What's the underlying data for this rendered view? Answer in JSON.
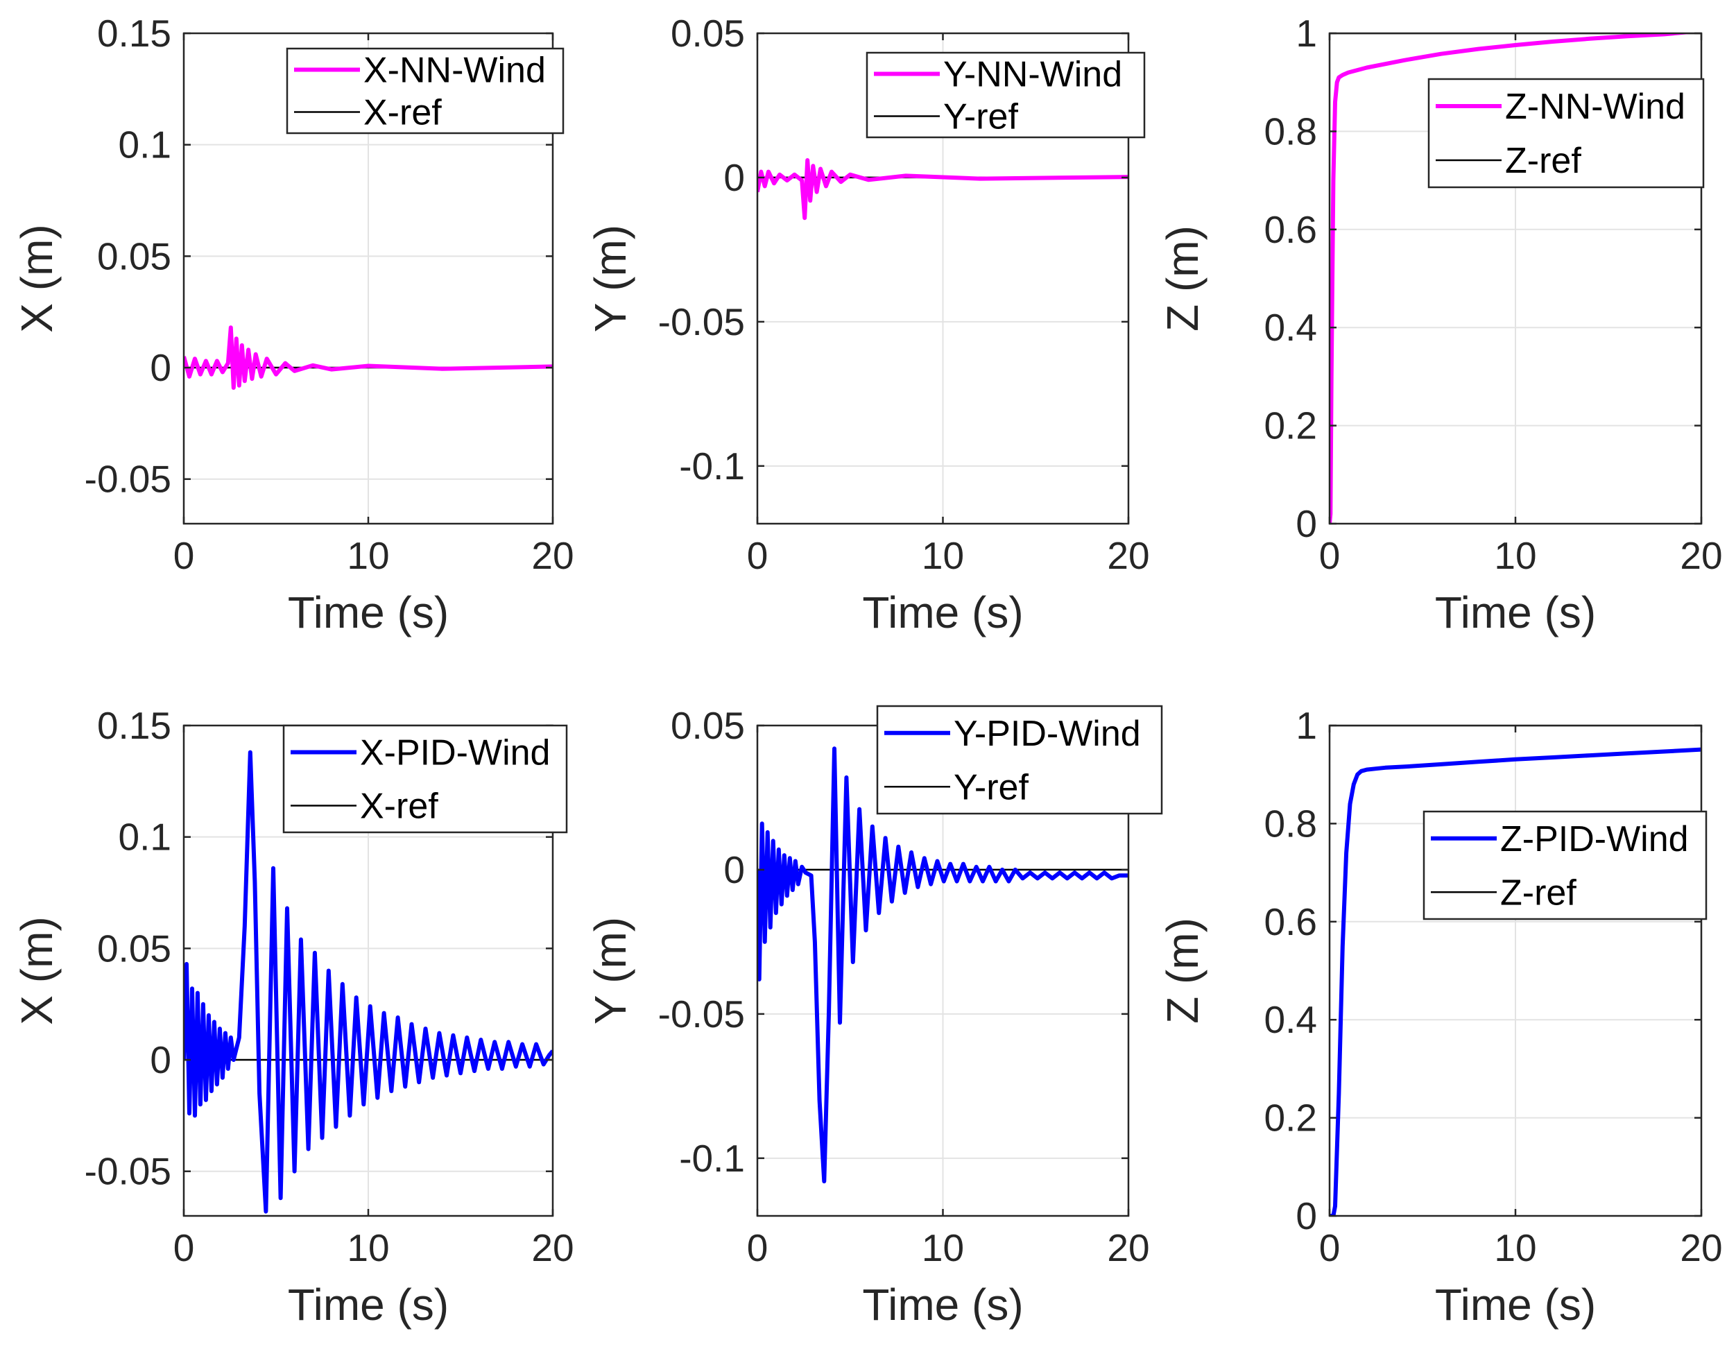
{
  "colors": {
    "nn": "#ff00ff",
    "pid": "#0000ff",
    "ref": "#000000"
  },
  "chart_data": [
    {
      "id": "x-nn",
      "type": "line",
      "title": "",
      "xlabel": "Time (s)",
      "ylabel": "X (m)",
      "xlim": [
        0,
        20
      ],
      "ylim": [
        -0.07,
        0.15
      ],
      "xticks": [
        0,
        10,
        20
      ],
      "xtick_labels": [
        "0",
        "10",
        "20"
      ],
      "yticks": [
        -0.05,
        0,
        0.05,
        0.1,
        0.15
      ],
      "ytick_labels": [
        "-0.05",
        "0",
        "0.05",
        "0.1",
        "0.15"
      ],
      "legend_position": "top-right",
      "series": [
        {
          "name": "X-NN-Wind",
          "role": "nn",
          "color": "#ff00ff",
          "x": [
            0,
            0.3,
            0.6,
            0.9,
            1.2,
            1.5,
            1.8,
            2.1,
            2.4,
            2.55,
            2.7,
            2.85,
            3.0,
            3.15,
            3.3,
            3.5,
            3.7,
            3.9,
            4.2,
            4.5,
            5,
            5.5,
            6,
            7,
            8,
            10,
            14,
            20
          ],
          "y": [
            0.005,
            -0.004,
            0.004,
            -0.003,
            0.003,
            -0.003,
            0.003,
            -0.002,
            0.002,
            0.018,
            -0.009,
            0.013,
            -0.008,
            0.01,
            -0.006,
            0.008,
            -0.005,
            0.006,
            -0.004,
            0.004,
            -0.003,
            0.002,
            -0.0015,
            0.001,
            -0.0008,
            0.0008,
            -0.0005,
            0.0005
          ]
        },
        {
          "name": "X-ref",
          "role": "ref",
          "color": "#000000",
          "x": [
            0,
            20
          ],
          "y": [
            0,
            0
          ]
        }
      ]
    },
    {
      "id": "y-nn",
      "type": "line",
      "title": "",
      "xlabel": "Time (s)",
      "ylabel": "Y (m)",
      "xlim": [
        0,
        20
      ],
      "ylim": [
        -0.12,
        0.05
      ],
      "xticks": [
        0,
        10,
        20
      ],
      "xtick_labels": [
        "0",
        "10",
        "20"
      ],
      "yticks": [
        -0.1,
        -0.05,
        0,
        0.05
      ],
      "ytick_labels": [
        "-0.1",
        "-0.05",
        "0",
        "0.05"
      ],
      "legend_position": "top-right",
      "series": [
        {
          "name": "Y-NN-Wind",
          "role": "nn",
          "color": "#ff00ff",
          "x": [
            0,
            0.2,
            0.4,
            0.6,
            0.9,
            1.2,
            1.6,
            2.0,
            2.4,
            2.55,
            2.7,
            2.85,
            3.0,
            3.2,
            3.4,
            3.7,
            4.0,
            4.5,
            5,
            6,
            8,
            12,
            20
          ],
          "y": [
            -0.005,
            0.002,
            -0.003,
            0.002,
            -0.002,
            0.001,
            -0.001,
            0.001,
            -0.001,
            -0.014,
            0.006,
            -0.008,
            0.004,
            -0.005,
            0.003,
            -0.003,
            0.002,
            -0.0015,
            0.001,
            -0.0008,
            0.0006,
            -0.0004,
            0.0002
          ]
        },
        {
          "name": "Y-ref",
          "role": "ref",
          "color": "#000000",
          "x": [
            0,
            20
          ],
          "y": [
            0,
            0
          ]
        }
      ]
    },
    {
      "id": "z-nn",
      "type": "line",
      "title": "",
      "xlabel": "Time (s)",
      "ylabel": "Z (m)",
      "xlim": [
        0,
        20
      ],
      "ylim": [
        0,
        1
      ],
      "xticks": [
        0,
        10,
        20
      ],
      "xtick_labels": [
        "0",
        "10",
        "20"
      ],
      "yticks": [
        0,
        0.2,
        0.4,
        0.6,
        0.8,
        1
      ],
      "ytick_labels": [
        "0",
        "0.2",
        "0.4",
        "0.6",
        "0.8",
        "1"
      ],
      "legend_position": "upper-right",
      "series": [
        {
          "name": "Z-NN-Wind",
          "role": "nn",
          "color": "#ff00ff",
          "x": [
            0,
            0.05,
            0.1,
            0.2,
            0.3,
            0.4,
            0.5,
            0.7,
            1,
            2,
            4,
            6,
            8,
            10,
            12,
            14,
            16,
            18,
            20
          ],
          "y": [
            0,
            0.02,
            0.3,
            0.7,
            0.86,
            0.9,
            0.91,
            0.915,
            0.92,
            0.93,
            0.945,
            0.958,
            0.968,
            0.976,
            0.983,
            0.989,
            0.994,
            0.998,
            1.005
          ]
        },
        {
          "name": "Z-ref",
          "role": "ref",
          "color": "#000000",
          "x": [
            0,
            20
          ],
          "y": [
            1,
            1
          ]
        }
      ]
    },
    {
      "id": "x-pid",
      "type": "line",
      "title": "",
      "xlabel": "Time (s)",
      "ylabel": "X (m)",
      "xlim": [
        0,
        20
      ],
      "ylim": [
        -0.07,
        0.15
      ],
      "xticks": [
        0,
        10,
        20
      ],
      "xtick_labels": [
        "0",
        "10",
        "20"
      ],
      "yticks": [
        -0.05,
        0,
        0.05,
        0.1,
        0.15
      ],
      "ytick_labels": [
        "-0.05",
        "0",
        "0.05",
        "0.1",
        "0.15"
      ],
      "legend_position": "top-right",
      "series": [
        {
          "name": "X-PID-Wind",
          "role": "pid",
          "color": "#0000ff",
          "x": [
            0,
            0.15,
            0.3,
            0.45,
            0.6,
            0.75,
            0.9,
            1.05,
            1.2,
            1.35,
            1.5,
            1.65,
            1.8,
            1.95,
            2.1,
            2.25,
            2.4,
            2.55,
            2.7,
            3.0,
            3.3,
            3.6,
            3.85,
            4.1,
            4.45,
            4.85,
            5.25,
            5.6,
            6.0,
            6.35,
            6.75,
            7.1,
            7.5,
            7.85,
            8.25,
            8.6,
            9.0,
            9.35,
            9.75,
            10.1,
            10.5,
            10.85,
            11.25,
            11.6,
            12.0,
            12.35,
            12.75,
            13.1,
            13.5,
            13.85,
            14.25,
            14.6,
            15.0,
            15.35,
            15.75,
            16.1,
            16.5,
            16.85,
            17.25,
            17.6,
            18.0,
            18.35,
            18.75,
            19.1,
            19.5,
            19.8,
            20
          ],
          "y": [
            0,
            0.043,
            -0.024,
            0.032,
            -0.025,
            0.03,
            -0.02,
            0.025,
            -0.018,
            0.02,
            -0.014,
            0.017,
            -0.011,
            0.014,
            -0.008,
            0.012,
            -0.004,
            0.01,
            0.0,
            0.01,
            0.06,
            0.138,
            0.08,
            -0.015,
            -0.068,
            0.086,
            -0.062,
            0.068,
            -0.05,
            0.054,
            -0.04,
            0.048,
            -0.035,
            0.04,
            -0.03,
            0.034,
            -0.025,
            0.028,
            -0.02,
            0.024,
            -0.017,
            0.021,
            -0.014,
            0.019,
            -0.012,
            0.016,
            -0.01,
            0.014,
            -0.008,
            0.012,
            -0.007,
            0.011,
            -0.006,
            0.01,
            -0.005,
            0.009,
            -0.004,
            0.008,
            -0.004,
            0.008,
            -0.003,
            0.007,
            -0.003,
            0.007,
            -0.002,
            0.002,
            0.004
          ]
        },
        {
          "name": "X-ref",
          "role": "ref",
          "color": "#000000",
          "x": [
            0,
            20
          ],
          "y": [
            0,
            0
          ]
        }
      ]
    },
    {
      "id": "y-pid",
      "type": "line",
      "title": "",
      "xlabel": "Time (s)",
      "ylabel": "Y (m)",
      "xlim": [
        0,
        20
      ],
      "ylim": [
        -0.12,
        0.05
      ],
      "xticks": [
        0,
        10,
        20
      ],
      "xtick_labels": [
        "0",
        "10",
        "20"
      ],
      "yticks": [
        -0.1,
        -0.05,
        0,
        0.05
      ],
      "ytick_labels": [
        "-0.1",
        "-0.05",
        "0",
        "0.05"
      ],
      "legend_position": "top-right",
      "series": [
        {
          "name": "Y-PID-Wind",
          "role": "pid",
          "color": "#0000ff",
          "x": [
            0,
            0.1,
            0.25,
            0.4,
            0.55,
            0.7,
            0.85,
            1.0,
            1.15,
            1.3,
            1.45,
            1.6,
            1.75,
            1.9,
            2.05,
            2.2,
            2.4,
            2.6,
            2.9,
            3.1,
            3.35,
            3.6,
            3.85,
            4.15,
            4.45,
            4.8,
            5.15,
            5.5,
            5.85,
            6.2,
            6.55,
            6.9,
            7.25,
            7.6,
            7.95,
            8.3,
            8.65,
            9.0,
            9.35,
            9.7,
            10.05,
            10.4,
            10.75,
            11.1,
            11.45,
            11.8,
            12.15,
            12.5,
            12.85,
            13.2,
            13.55,
            13.9,
            14.3,
            14.7,
            15.1,
            15.5,
            15.9,
            16.3,
            16.7,
            17.1,
            17.5,
            17.9,
            18.3,
            18.7,
            19.1,
            19.5,
            20
          ],
          "y": [
            0,
            -0.038,
            0.016,
            -0.025,
            0.013,
            -0.02,
            0.01,
            -0.015,
            0.007,
            -0.012,
            0.005,
            -0.009,
            0.004,
            -0.007,
            0.003,
            -0.005,
            0.001,
            -0.001,
            -0.002,
            -0.025,
            -0.08,
            -0.108,
            -0.05,
            0.042,
            -0.053,
            0.032,
            -0.032,
            0.021,
            -0.021,
            0.015,
            -0.015,
            0.011,
            -0.011,
            0.008,
            -0.008,
            0.006,
            -0.006,
            0.004,
            -0.005,
            0.003,
            -0.004,
            0.002,
            -0.004,
            0.002,
            -0.004,
            0.001,
            -0.004,
            0.001,
            -0.004,
            0.0,
            -0.004,
            0.0,
            -0.003,
            -0.001,
            -0.003,
            -0.001,
            -0.003,
            -0.001,
            -0.003,
            -0.001,
            -0.003,
            -0.001,
            -0.003,
            -0.001,
            -0.003,
            -0.002,
            -0.002
          ]
        },
        {
          "name": "Y-ref",
          "role": "ref",
          "color": "#000000",
          "x": [
            0,
            20
          ],
          "y": [
            0,
            0
          ]
        }
      ]
    },
    {
      "id": "z-pid",
      "type": "line",
      "title": "",
      "xlabel": "Time (s)",
      "ylabel": "Z (m)",
      "xlim": [
        0,
        20
      ],
      "ylim": [
        0,
        1
      ],
      "xticks": [
        0,
        10,
        20
      ],
      "xtick_labels": [
        "0",
        "10",
        "20"
      ],
      "yticks": [
        0,
        0.2,
        0.4,
        0.6,
        0.8,
        1
      ],
      "ytick_labels": [
        "0",
        "0.2",
        "0.4",
        "0.6",
        "0.8",
        "1"
      ],
      "legend_position": "upper-right",
      "series": [
        {
          "name": "Z-PID-Wind",
          "role": "pid",
          "color": "#0000ff",
          "x": [
            0,
            0.2,
            0.3,
            0.5,
            0.7,
            0.9,
            1.1,
            1.3,
            1.5,
            1.7,
            2.0,
            2.5,
            3,
            4,
            6,
            8,
            10,
            12,
            14,
            16,
            18,
            20
          ],
          "y": [
            0,
            0.0,
            0.02,
            0.25,
            0.55,
            0.74,
            0.84,
            0.88,
            0.9,
            0.907,
            0.91,
            0.912,
            0.914,
            0.916,
            0.921,
            0.926,
            0.931,
            0.935,
            0.939,
            0.943,
            0.947,
            0.951
          ]
        },
        {
          "name": "Z-ref",
          "role": "ref",
          "color": "#000000",
          "x": [
            0,
            20
          ],
          "y": [
            1,
            1
          ]
        }
      ]
    }
  ]
}
